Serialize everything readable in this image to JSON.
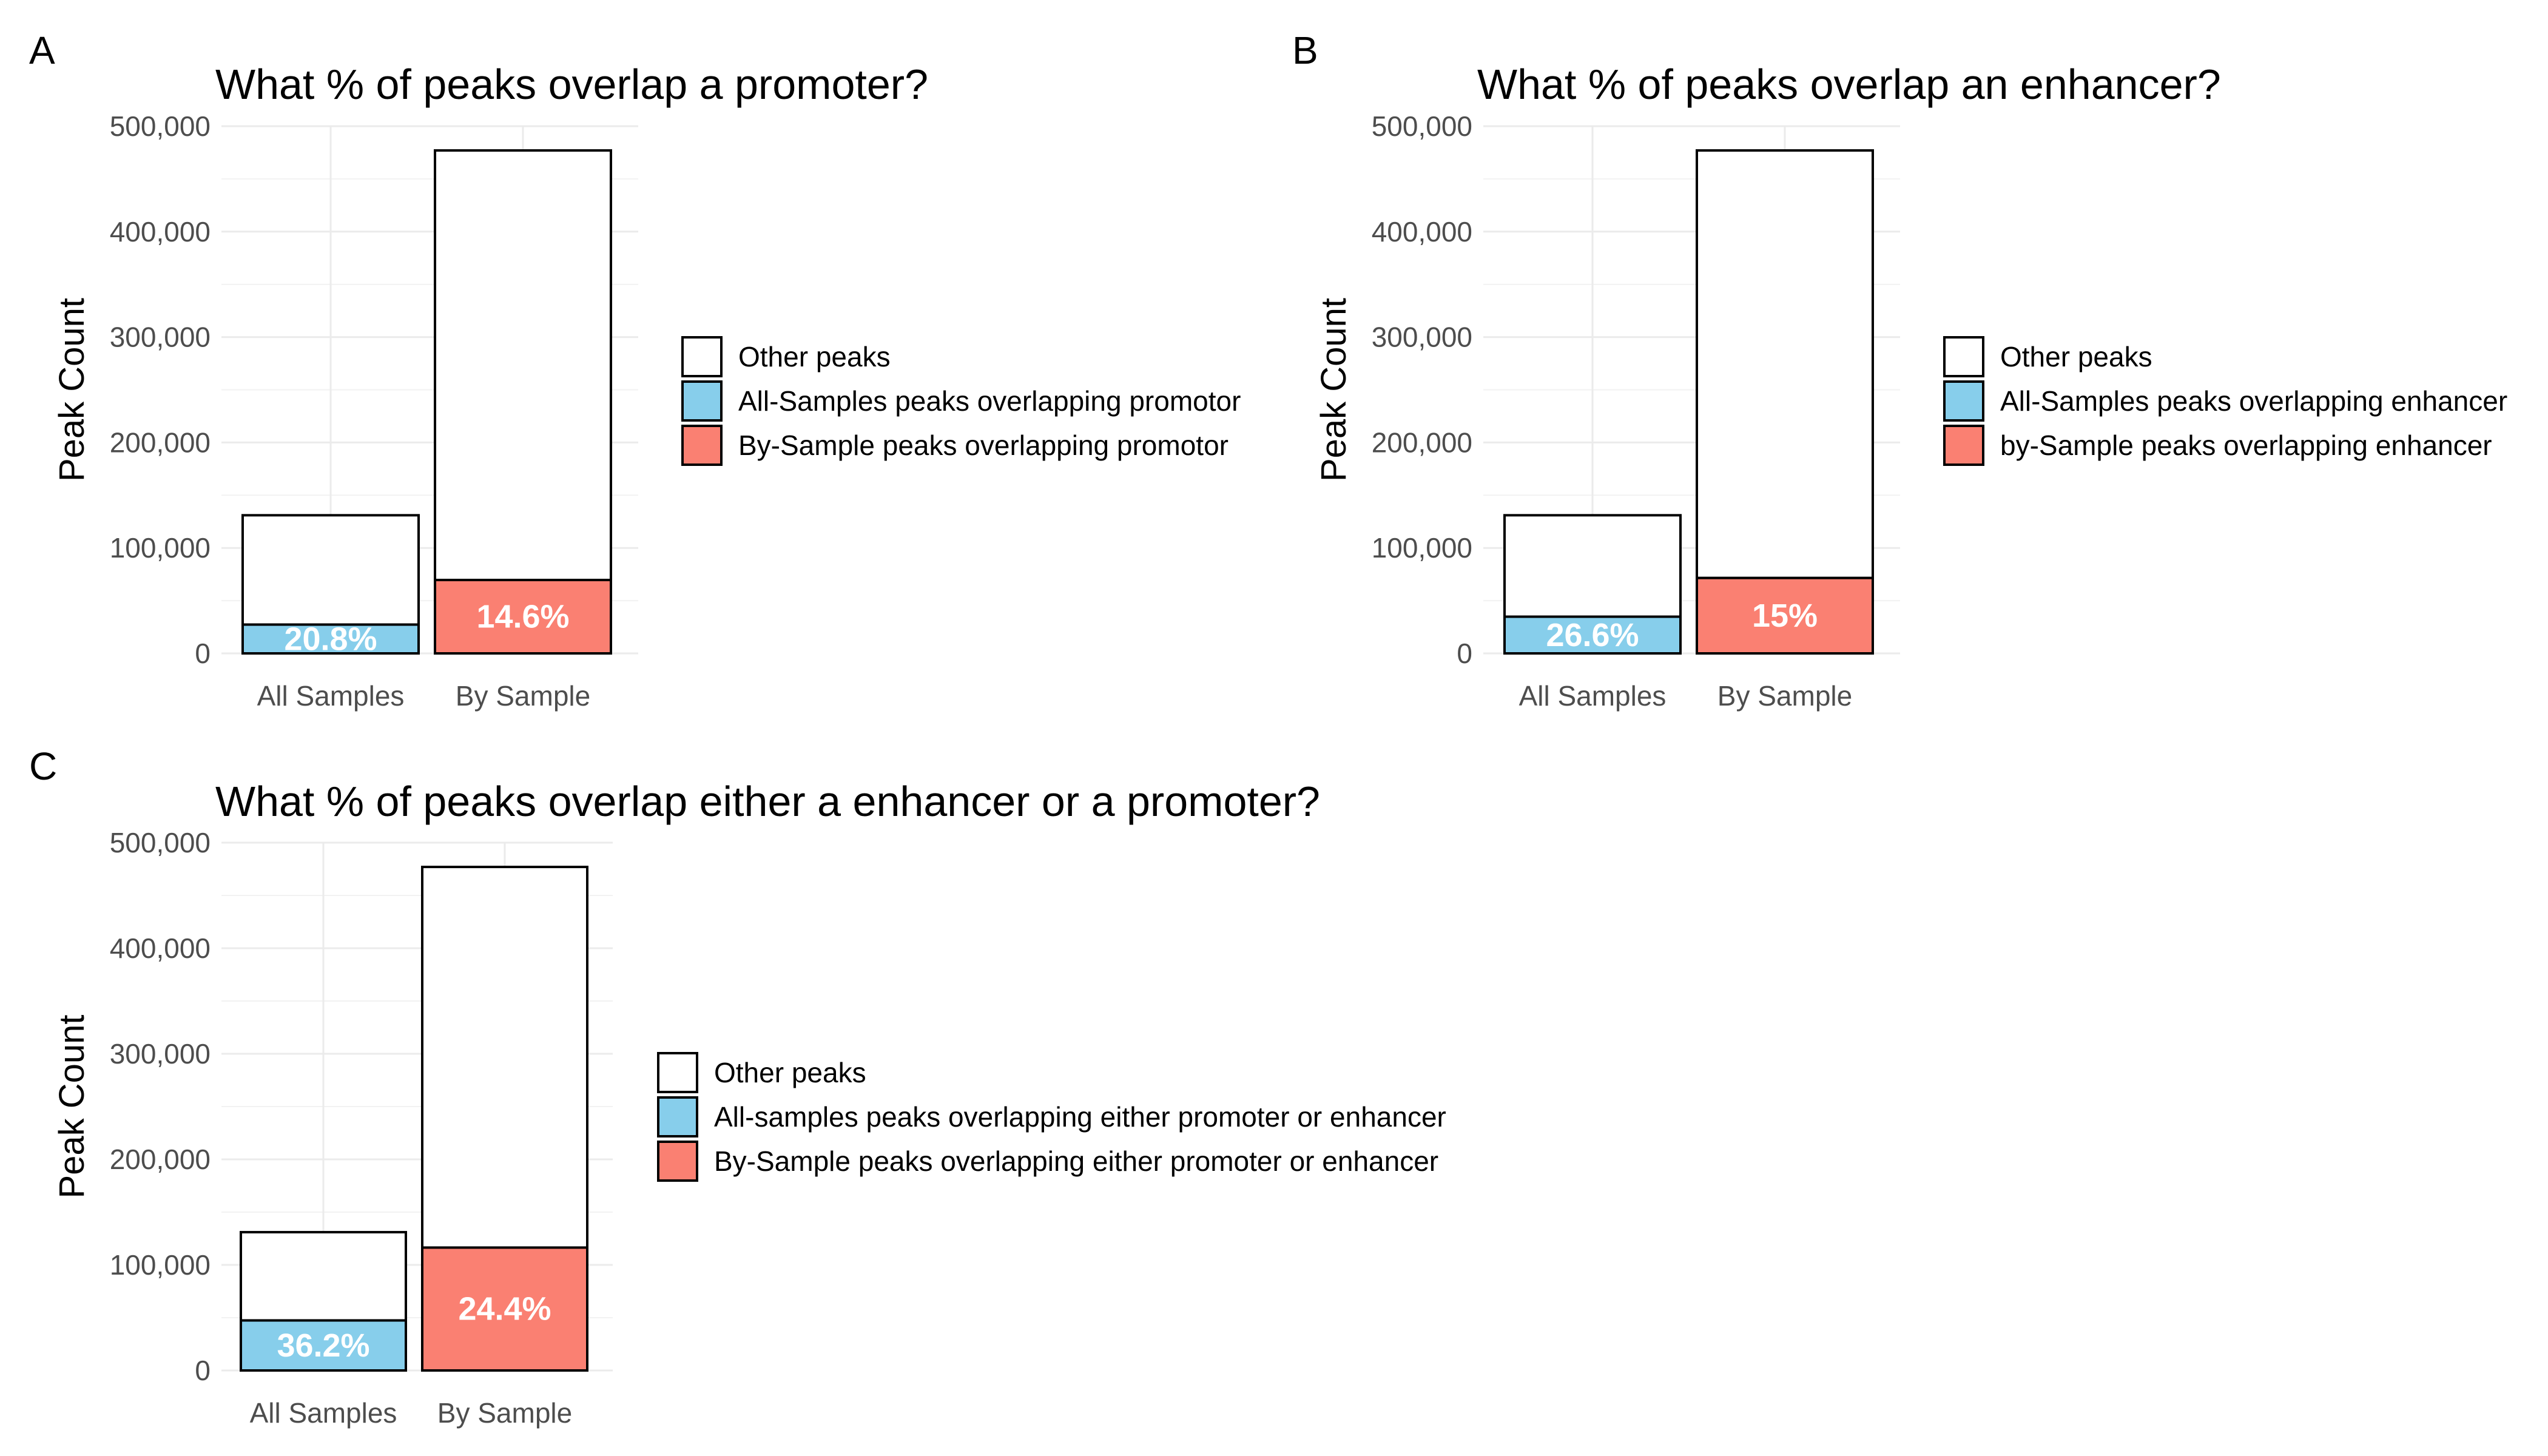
{
  "panels": [
    {
      "letter": "A",
      "chart_data": {
        "type": "bar",
        "stacked": true,
        "title": "What % of peaks overlap a promoter?",
        "xlabel": "",
        "ylabel": "Peak Count",
        "ylim": [
          0,
          500000
        ],
        "yticks": [
          0,
          100000,
          200000,
          300000,
          400000,
          500000
        ],
        "ytick_labels": [
          "0",
          "100,000",
          "200,000",
          "300,000",
          "400,000",
          "500,000"
        ],
        "categories": [
          "All Samples",
          "By Sample"
        ],
        "totals": [
          131000,
          477000
        ],
        "overlap_values": [
          27300,
          69600
        ],
        "overlap_colors": [
          "#87CEEB",
          "#FA8072"
        ],
        "data_labels": [
          "20.8%",
          "14.6%"
        ],
        "legend_position": "right",
        "legend": [
          {
            "label": "Other peaks",
            "color": "#ffffff"
          },
          {
            "label": "All-Samples peaks overlapping promotor",
            "color": "#87CEEB"
          },
          {
            "label": "By-Sample peaks overlapping promotor",
            "color": "#FA8072"
          }
        ]
      }
    },
    {
      "letter": "B",
      "chart_data": {
        "type": "bar",
        "stacked": true,
        "title": "What % of peaks overlap an enhancer?",
        "xlabel": "",
        "ylabel": "Peak Count",
        "ylim": [
          0,
          500000
        ],
        "yticks": [
          0,
          100000,
          200000,
          300000,
          400000,
          500000
        ],
        "ytick_labels": [
          "0",
          "100,000",
          "200,000",
          "300,000",
          "400,000",
          "500,000"
        ],
        "categories": [
          "All Samples",
          "By Sample"
        ],
        "totals": [
          131000,
          477000
        ],
        "overlap_values": [
          34800,
          71500
        ],
        "overlap_colors": [
          "#87CEEB",
          "#FA8072"
        ],
        "data_labels": [
          "26.6%",
          "15%"
        ],
        "legend_position": "right",
        "legend": [
          {
            "label": "Other peaks",
            "color": "#ffffff"
          },
          {
            "label": "All-Samples peaks overlapping enhancer",
            "color": "#87CEEB"
          },
          {
            "label": "by-Sample peaks overlapping enhancer",
            "color": "#FA8072"
          }
        ]
      }
    },
    {
      "letter": "C",
      "chart_data": {
        "type": "bar",
        "stacked": true,
        "title": "What % of peaks overlap either a enhancer or a promoter?",
        "xlabel": "",
        "ylabel": "Peak Count",
        "ylim": [
          0,
          500000
        ],
        "yticks": [
          0,
          100000,
          200000,
          300000,
          400000,
          500000
        ],
        "ytick_labels": [
          "0",
          "100,000",
          "200,000",
          "300,000",
          "400,000",
          "500,000"
        ],
        "categories": [
          "All Samples",
          "By Sample"
        ],
        "totals": [
          131000,
          477000
        ],
        "overlap_values": [
          47400,
          116400
        ],
        "overlap_colors": [
          "#87CEEB",
          "#FA8072"
        ],
        "data_labels": [
          "36.2%",
          "24.4%"
        ],
        "legend_position": "right",
        "legend": [
          {
            "label": "Other peaks",
            "color": "#ffffff"
          },
          {
            "label": "All-samples peaks overlapping either promoter or enhancer",
            "color": "#87CEEB"
          },
          {
            "label": "By-Sample peaks overlapping either promoter or enhancer",
            "color": "#FA8072"
          }
        ]
      }
    }
  ]
}
